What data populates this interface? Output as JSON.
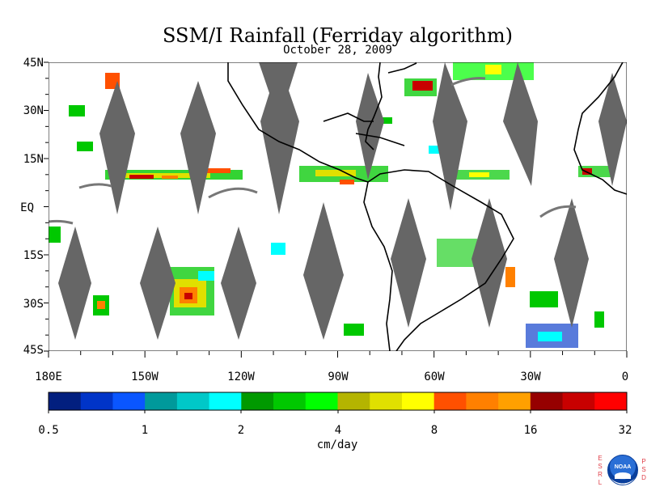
{
  "title": "SSM/I Rainfall (Ferriday algorithm)",
  "subtitle": "October 28, 2009",
  "lat_labels": [
    "45N",
    "30N",
    "15N",
    "EQ",
    "15S",
    "30S",
    "45S"
  ],
  "lon_labels": [
    "180E",
    "150W",
    "120W",
    "90W",
    "60W",
    "30W",
    "0"
  ],
  "colorbar": {
    "unit": "cm/day",
    "tick_labels": [
      "0.5",
      "1",
      "2",
      "4",
      "8",
      "16",
      "32"
    ],
    "colors": [
      "#021f7f",
      "#0034c8",
      "#0a56ff",
      "#00999b",
      "#00c8c8",
      "#00ffff",
      "#009900",
      "#00c800",
      "#00ff00",
      "#b4b400",
      "#e0e000",
      "#ffff00",
      "#ff5000",
      "#ff8000",
      "#ffa000",
      "#960000",
      "#c80000",
      "#ff0000"
    ]
  },
  "map": {
    "swath_gap_color": "#666666",
    "coastline_color": "#000000"
  },
  "logo": {
    "left_letters": [
      "E",
      "S",
      "R",
      "L"
    ],
    "right_letters": [
      "P",
      "S",
      "D"
    ],
    "text": "NOAA"
  }
}
